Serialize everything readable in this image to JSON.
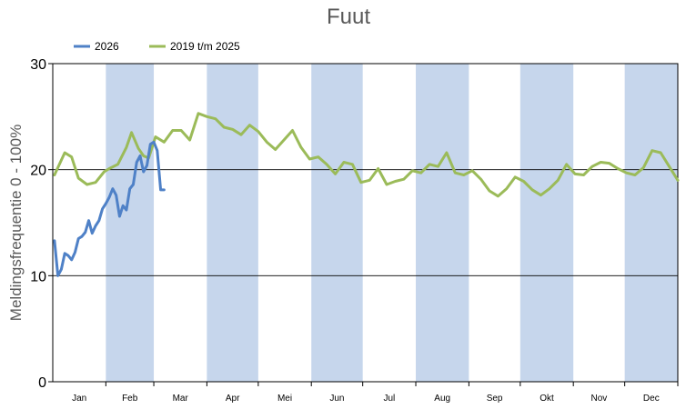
{
  "chart_data": {
    "type": "line",
    "title": "Fuut",
    "ylabel": "Meldingsfrequentie 0 - 100%",
    "xlabel": "",
    "ylim": [
      0,
      30
    ],
    "yticks": [
      0,
      10,
      20,
      30
    ],
    "grid": true,
    "legend_position": "top-left",
    "months": [
      "Jan",
      "Feb",
      "Mar",
      "Apr",
      "Mei",
      "Jun",
      "Jul",
      "Aug",
      "Sep",
      "Okt",
      "Nov",
      "Dec"
    ],
    "shaded_months": [
      "Feb",
      "Apr",
      "Jun",
      "Aug",
      "Okt",
      "Dec"
    ],
    "shade_color": "#c6d6ec",
    "series": [
      {
        "name": "2026",
        "color": "#4f81c7",
        "x": [
          1,
          3,
          5,
          7,
          9,
          11,
          13,
          15,
          17,
          19,
          21,
          23,
          25,
          27,
          29,
          31,
          33,
          35,
          37,
          39,
          41,
          43,
          45,
          47,
          49,
          51,
          53,
          55,
          57,
          59,
          61,
          63,
          65,
          67,
          69,
          71,
          73,
          75,
          77
        ],
        "y": [
          13.3,
          10.0,
          10.6,
          12.1,
          11.9,
          11.5,
          12.2,
          13.5,
          13.7,
          14.1,
          15.2,
          14.0,
          14.7,
          15.2,
          16.3,
          16.8,
          17.4,
          18.2,
          17.6,
          15.6,
          16.6,
          16.2,
          18.2,
          18.6,
          20.7,
          21.3,
          19.8,
          20.4,
          22.4,
          22.6,
          21.8,
          18.1,
          18.1,
          null,
          null,
          null,
          null,
          null,
          null
        ]
      },
      {
        "name": "2019 t/m 2025",
        "color": "#9bbb59",
        "x": [
          1,
          7,
          11,
          15,
          20,
          25,
          30,
          33,
          38,
          43,
          46,
          50,
          53,
          56,
          60,
          65,
          70,
          75,
          80,
          85,
          90,
          95,
          100,
          105,
          110,
          115,
          120,
          125,
          130,
          135,
          140,
          145,
          150,
          155,
          160,
          165,
          170,
          175,
          180,
          185,
          190,
          195,
          200,
          205,
          210,
          215,
          220,
          225,
          230,
          235,
          240,
          245,
          250,
          255,
          260,
          265,
          270,
          275,
          280,
          285,
          290,
          295,
          300,
          305,
          310,
          315,
          320,
          325,
          330,
          335,
          340,
          345,
          350,
          355,
          360,
          365
        ],
        "y": [
          19.5,
          21.6,
          21.2,
          19.2,
          18.6,
          18.8,
          19.8,
          20.1,
          20.5,
          22.1,
          23.5,
          22.0,
          21.3,
          21.1,
          23.1,
          22.6,
          23.7,
          23.7,
          22.8,
          25.3,
          25.0,
          24.8,
          24.0,
          23.8,
          23.3,
          24.2,
          23.6,
          22.6,
          21.9,
          22.8,
          23.7,
          22.1,
          21.0,
          21.2,
          20.5,
          19.6,
          20.7,
          20.5,
          18.8,
          19.0,
          20.1,
          18.6,
          18.9,
          19.1,
          19.9,
          19.7,
          20.5,
          20.3,
          21.6,
          19.7,
          19.5,
          19.9,
          19.1,
          18.0,
          17.5,
          18.2,
          19.3,
          18.9,
          18.1,
          17.6,
          18.2,
          19.0,
          20.5,
          19.6,
          19.5,
          20.3,
          20.7,
          20.6,
          20.1,
          19.7,
          19.5,
          20.2,
          21.8,
          21.6,
          20.3,
          19.0
        ]
      }
    ]
  }
}
